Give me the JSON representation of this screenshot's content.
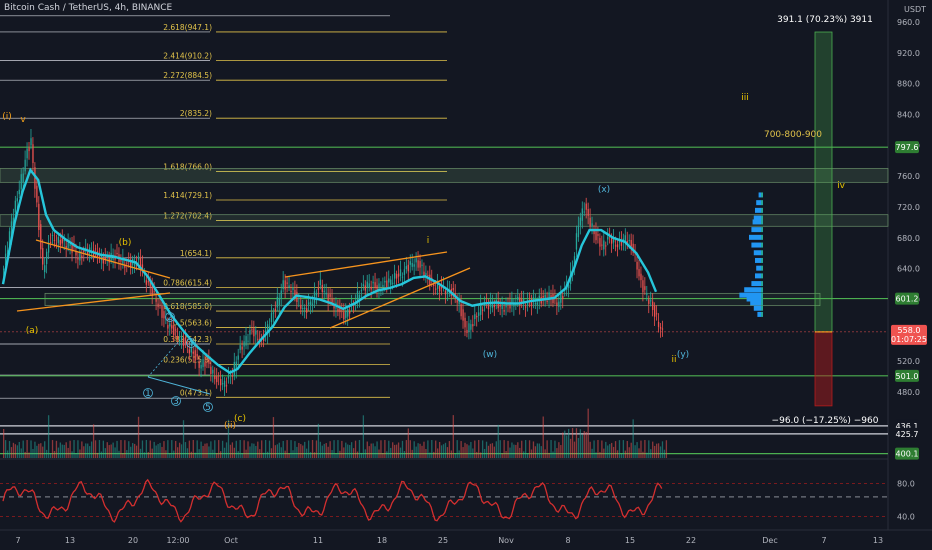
{
  "header": {
    "title": "Bitcoin Cash / TetherUS, 4h, BINANCE"
  },
  "colors": {
    "bg": "#131722",
    "up": "#26a69a",
    "down": "#ef5350",
    "fib": "#e0c24a",
    "green_level": "#4caf50",
    "wave_orange": "#f7a21b",
    "wave_cyan": "#4fb4d8",
    "ma": "#26c6da",
    "trend": "#f7941d",
    "rsi": "#d32f2f"
  },
  "chart_data": {
    "type": "line",
    "currency_label": "USDT",
    "y_ticks": [
      960.0,
      920.0,
      880.0,
      840.0,
      800.0,
      760.0,
      720.0,
      680.0,
      640.0,
      600.0,
      560.0,
      520.0,
      480.0
    ],
    "x_ticks": [
      "7",
      "13",
      "20",
      "12:00",
      "Oct",
      "11",
      "18",
      "25",
      "Nov",
      "8",
      "15",
      "22",
      "Dec",
      "7",
      "13"
    ],
    "price_path": [
      [
        0,
        640
      ],
      [
        4,
        700
      ],
      [
        8,
        745
      ],
      [
        12,
        792
      ],
      [
        14,
        805
      ],
      [
        17,
        720
      ],
      [
        20,
        640
      ],
      [
        24,
        680
      ],
      [
        28,
        675
      ],
      [
        34,
        670
      ],
      [
        38,
        655
      ],
      [
        43,
        665
      ],
      [
        47,
        660
      ],
      [
        52,
        650
      ],
      [
        56,
        658
      ],
      [
        63,
        645
      ],
      [
        69,
        650
      ],
      [
        72,
        630
      ],
      [
        77,
        605
      ],
      [
        82,
        575
      ],
      [
        88,
        555
      ],
      [
        92,
        545
      ],
      [
        97,
        530
      ],
      [
        100,
        515
      ],
      [
        104,
        520
      ],
      [
        108,
        498
      ],
      [
        113,
        490
      ],
      [
        117,
        505
      ],
      [
        120,
        530
      ],
      [
        123,
        545
      ],
      [
        127,
        560
      ],
      [
        132,
        545
      ],
      [
        135,
        565
      ],
      [
        139,
        590
      ],
      [
        143,
        620
      ],
      [
        147,
        615
      ],
      [
        150,
        600
      ],
      [
        154,
        585
      ],
      [
        158,
        600
      ],
      [
        162,
        620
      ],
      [
        165,
        605
      ],
      [
        170,
        590
      ],
      [
        174,
        580
      ],
      [
        178,
        590
      ],
      [
        182,
        610
      ],
      [
        186,
        620
      ],
      [
        192,
        615
      ],
      [
        198,
        625
      ],
      [
        204,
        635
      ],
      [
        210,
        650
      ],
      [
        214,
        640
      ],
      [
        219,
        620
      ],
      [
        223,
        615
      ],
      [
        229,
        610
      ],
      [
        233,
        595
      ],
      [
        236,
        560
      ],
      [
        240,
        570
      ],
      [
        244,
        590
      ],
      [
        250,
        595
      ],
      [
        256,
        590
      ],
      [
        262,
        598
      ],
      [
        268,
        595
      ],
      [
        275,
        600
      ],
      [
        279,
        605
      ],
      [
        283,
        595
      ],
      [
        287,
        610
      ],
      [
        291,
        640
      ],
      [
        294,
        700
      ],
      [
        297,
        720
      ],
      [
        300,
        700
      ],
      [
        303,
        680
      ],
      [
        306,
        670
      ],
      [
        310,
        680
      ],
      [
        314,
        670
      ],
      [
        318,
        680
      ],
      [
        322,
        665
      ],
      [
        326,
        620
      ],
      [
        330,
        600
      ],
      [
        334,
        575
      ],
      [
        338,
        550
      ]
    ],
    "ma_path": [
      [
        0,
        620
      ],
      [
        6,
        700
      ],
      [
        10,
        740
      ],
      [
        14,
        768
      ],
      [
        18,
        755
      ],
      [
        22,
        710
      ],
      [
        26,
        690
      ],
      [
        32,
        678
      ],
      [
        38,
        668
      ],
      [
        44,
        663
      ],
      [
        50,
        658
      ],
      [
        56,
        656
      ],
      [
        62,
        652
      ],
      [
        68,
        648
      ],
      [
        74,
        630
      ],
      [
        80,
        605
      ],
      [
        86,
        580
      ],
      [
        92,
        560
      ],
      [
        98,
        542
      ],
      [
        104,
        528
      ],
      [
        110,
        515
      ],
      [
        116,
        505
      ],
      [
        120,
        510
      ],
      [
        126,
        530
      ],
      [
        132,
        548
      ],
      [
        138,
        565
      ],
      [
        144,
        590
      ],
      [
        150,
        605
      ],
      [
        156,
        603
      ],
      [
        162,
        600
      ],
      [
        168,
        595
      ],
      [
        174,
        588
      ],
      [
        180,
        595
      ],
      [
        186,
        605
      ],
      [
        192,
        612
      ],
      [
        198,
        615
      ],
      [
        204,
        620
      ],
      [
        210,
        628
      ],
      [
        216,
        630
      ],
      [
        222,
        622
      ],
      [
        228,
        612
      ],
      [
        234,
        598
      ],
      [
        240,
        592
      ],
      [
        246,
        595
      ],
      [
        252,
        596
      ],
      [
        258,
        595
      ],
      [
        264,
        595
      ],
      [
        270,
        598
      ],
      [
        276,
        600
      ],
      [
        282,
        602
      ],
      [
        288,
        615
      ],
      [
        292,
        640
      ],
      [
        296,
        670
      ],
      [
        300,
        690
      ],
      [
        306,
        690
      ],
      [
        312,
        680
      ],
      [
        318,
        675
      ],
      [
        324,
        660
      ],
      [
        330,
        635
      ],
      [
        334,
        610
      ]
    ],
    "horizontal_levels": [
      {
        "price": 797.6,
        "badge": "797.6"
      },
      {
        "price": 601.2,
        "badge": "601.2"
      },
      {
        "price": 501.0,
        "badge": "501.0"
      },
      {
        "price": 436.1,
        "badge": "436.1"
      },
      {
        "price": 425.7,
        "badge": "425.7"
      },
      {
        "price": 400.1,
        "badge": "400.1"
      }
    ],
    "current_price": {
      "value": 558.0,
      "label": "558.0",
      "countdown": "01:07:25"
    },
    "fibonacci": [
      {
        "label": "2.618(947.1)",
        "price": 947.1
      },
      {
        "label": "2.414(910.2)",
        "price": 910.2
      },
      {
        "label": "2.272(884.5)",
        "price": 884.5
      },
      {
        "label": "2(835.2)",
        "price": 835.2
      },
      {
        "label": "1.618(766.0)",
        "price": 766.0
      },
      {
        "label": "1.414(729.1)",
        "price": 729.1
      },
      {
        "label": "1.272(702.4)",
        "price": 702.4
      },
      {
        "label": "1(654.1)",
        "price": 654.1
      },
      {
        "label": "0.786(615.4)",
        "price": 615.4
      },
      {
        "label": "0.618(585.0)",
        "price": 585.0
      },
      {
        "label": "0.5(563.6)",
        "price": 563.6
      },
      {
        "label": "0.382(542.3)",
        "price": 542.3
      },
      {
        "label": "0.236(515.8)",
        "price": 515.8
      },
      {
        "label": "0(473.1)",
        "price": 473.1
      }
    ],
    "wave_labels": [
      {
        "text": "(i)",
        "color": "orange"
      },
      {
        "text": "v",
        "color": "orange"
      },
      {
        "text": "(a)",
        "color": "yellow"
      },
      {
        "text": "(b)",
        "color": "yellow"
      },
      {
        "text": "(c)",
        "color": "yellow"
      },
      {
        "text": "(ii)",
        "color": "orange"
      },
      {
        "text": "i",
        "color": "yellow"
      },
      {
        "text": "(w)",
        "color": "cyan"
      },
      {
        "text": "(x)",
        "color": "cyan"
      },
      {
        "text": "(y)",
        "color": "cyan"
      },
      {
        "text": "ii",
        "color": "yellow"
      },
      {
        "text": "iii",
        "color": "yellow"
      },
      {
        "text": "iv",
        "color": "yellow"
      },
      {
        "text": "1",
        "color": "cyan"
      },
      {
        "text": "2",
        "color": "cyan"
      },
      {
        "text": "3",
        "color": "cyan"
      },
      {
        "text": "4",
        "color": "cyan"
      },
      {
        "text": "5",
        "color": "cyan"
      }
    ],
    "annotations": {
      "long_target": "391.1 (70.23%) 3911",
      "short_target": "−96.0 (−17.25%) −960",
      "range_note": "700-800-900"
    },
    "rsi": {
      "ticks": [
        "80.0",
        "40.0"
      ]
    }
  }
}
